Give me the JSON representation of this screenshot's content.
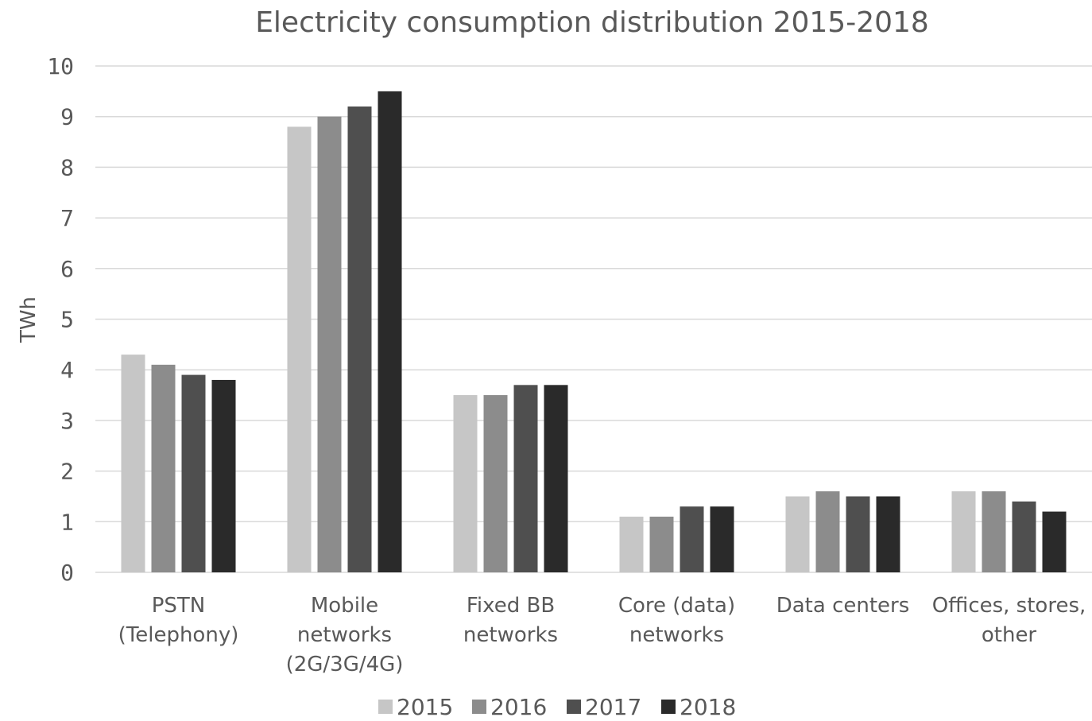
{
  "chart_data": {
    "type": "bar",
    "title": "Electricity consumption distribution 2015-2018",
    "xlabel": "",
    "ylabel": "TWh",
    "ylim": [
      0,
      10
    ],
    "yticks": [
      "0",
      "1",
      "2",
      "3",
      "4",
      "5",
      "6",
      "7",
      "8",
      "9",
      "10"
    ],
    "grid": true,
    "legend_position": "bottom",
    "categories": [
      [
        "PSTN",
        "(Telephony)"
      ],
      [
        "Mobile",
        "networks",
        "(2G/3G/4G)"
      ],
      [
        "Fixed BB",
        "networks"
      ],
      [
        "Core (data)",
        "networks"
      ],
      [
        "Data centers"
      ],
      [
        "Offices, stores,",
        "other"
      ]
    ],
    "series": [
      {
        "name": "2015",
        "color": "#c6c6c6",
        "values": [
          4.3,
          8.8,
          3.5,
          1.1,
          1.5,
          1.6
        ]
      },
      {
        "name": "2016",
        "color": "#8c8c8c",
        "values": [
          4.1,
          9.0,
          3.5,
          1.1,
          1.6,
          1.6
        ]
      },
      {
        "name": "2017",
        "color": "#4f4f4f",
        "values": [
          3.9,
          9.2,
          3.7,
          1.3,
          1.5,
          1.4
        ]
      },
      {
        "name": "2018",
        "color": "#2a2a2a",
        "values": [
          3.8,
          9.5,
          3.7,
          1.3,
          1.5,
          1.2
        ]
      }
    ]
  }
}
